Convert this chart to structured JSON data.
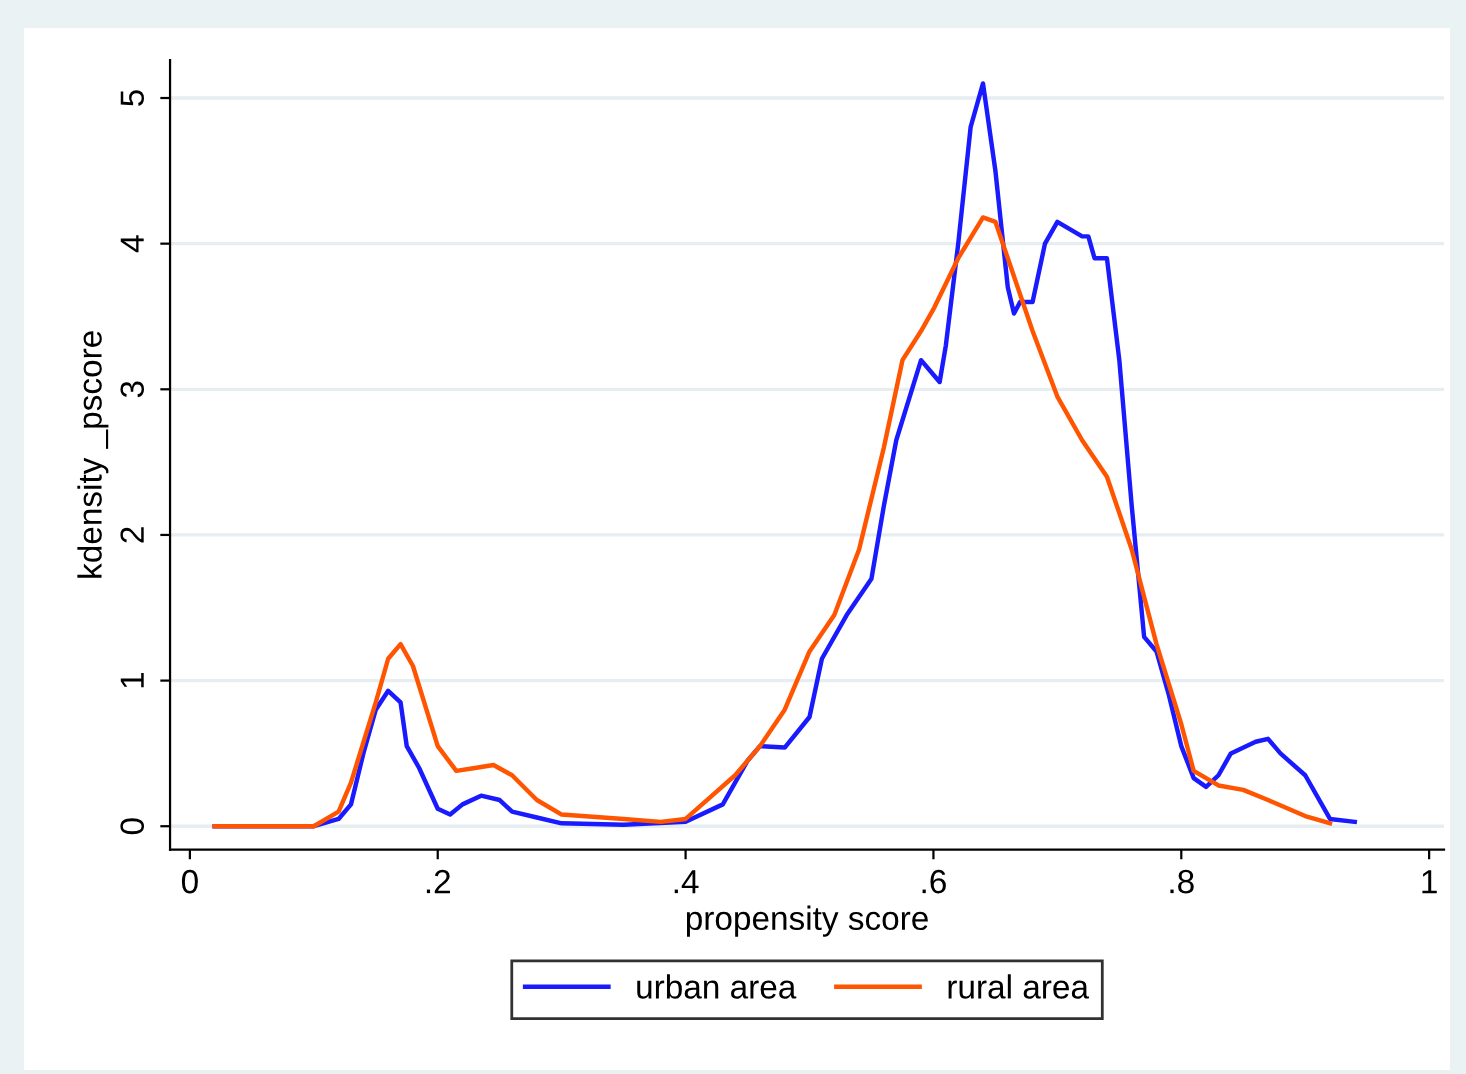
{
  "chart_data": {
    "type": "line",
    "xlabel": "propensity score",
    "ylabel": "kdensity _pscore",
    "xlim": [
      -0.016,
      1.012
    ],
    "ylim": [
      -0.16,
      5.26
    ],
    "xticks": [
      0,
      {
        "value": 0.2,
        "label": ".2"
      },
      {
        "value": 0.4,
        "label": ".4"
      },
      {
        "value": 0.6,
        "label": ".6"
      },
      {
        "value": 0.8,
        "label": ".8"
      },
      1
    ],
    "yticks": [
      0,
      1,
      2,
      3,
      4,
      5
    ],
    "grid": "y",
    "legend": "bottom",
    "line_style": "solid",
    "marker": "none",
    "series": [
      {
        "name": "urban area",
        "color": "#1a1aff",
        "x": [
          0.02,
          0.1,
          0.12,
          0.13,
          0.14,
          0.15,
          0.16,
          0.17,
          0.175,
          0.185,
          0.2,
          0.21,
          0.22,
          0.235,
          0.25,
          0.26,
          0.28,
          0.3,
          0.35,
          0.4,
          0.43,
          0.45,
          0.46,
          0.48,
          0.5,
          0.51,
          0.53,
          0.55,
          0.56,
          0.57,
          0.59,
          0.6,
          0.605,
          0.61,
          0.62,
          0.63,
          0.64,
          0.65,
          0.66,
          0.665,
          0.67,
          0.68,
          0.69,
          0.7,
          0.71,
          0.72,
          0.725,
          0.73,
          0.74,
          0.75,
          0.76,
          0.77,
          0.78,
          0.79,
          0.8,
          0.81,
          0.82,
          0.83,
          0.84,
          0.86,
          0.87,
          0.88,
          0.9,
          0.92,
          0.94
        ],
        "values": [
          0,
          0,
          0.05,
          0.15,
          0.5,
          0.8,
          0.93,
          0.85,
          0.55,
          0.4,
          0.12,
          0.08,
          0.15,
          0.21,
          0.18,
          0.1,
          0.06,
          0.02,
          0.01,
          0.03,
          0.15,
          0.45,
          0.55,
          0.54,
          0.75,
          1.15,
          1.45,
          1.7,
          2.2,
          2.65,
          3.2,
          3.1,
          3.05,
          3.3,
          4.0,
          4.8,
          5.1,
          4.5,
          3.7,
          3.52,
          3.6,
          3.6,
          4.0,
          4.15,
          4.1,
          4.05,
          4.05,
          3.9,
          3.9,
          3.2,
          2.2,
          1.3,
          1.2,
          0.9,
          0.55,
          0.33,
          0.27,
          0.35,
          0.5,
          0.58,
          0.6,
          0.5,
          0.35,
          0.05,
          0.03
        ]
      },
      {
        "name": "rural area",
        "color": "#ff5500",
        "x": [
          0.02,
          0.1,
          0.12,
          0.13,
          0.15,
          0.16,
          0.17,
          0.18,
          0.2,
          0.215,
          0.23,
          0.245,
          0.26,
          0.28,
          0.3,
          0.35,
          0.38,
          0.4,
          0.42,
          0.44,
          0.46,
          0.48,
          0.5,
          0.52,
          0.54,
          0.56,
          0.575,
          0.59,
          0.6,
          0.62,
          0.64,
          0.65,
          0.66,
          0.68,
          0.7,
          0.72,
          0.74,
          0.76,
          0.78,
          0.8,
          0.81,
          0.83,
          0.85,
          0.87,
          0.9,
          0.92
        ],
        "values": [
          0,
          0,
          0.1,
          0.3,
          0.85,
          1.15,
          1.25,
          1.1,
          0.55,
          0.38,
          0.4,
          0.42,
          0.35,
          0.18,
          0.08,
          0.05,
          0.03,
          0.05,
          0.2,
          0.35,
          0.55,
          0.8,
          1.2,
          1.45,
          1.9,
          2.6,
          3.2,
          3.4,
          3.55,
          3.9,
          4.18,
          4.15,
          3.9,
          3.4,
          2.95,
          2.65,
          2.4,
          1.9,
          1.25,
          0.7,
          0.38,
          0.28,
          0.25,
          0.18,
          0.07,
          0.02
        ]
      }
    ]
  }
}
